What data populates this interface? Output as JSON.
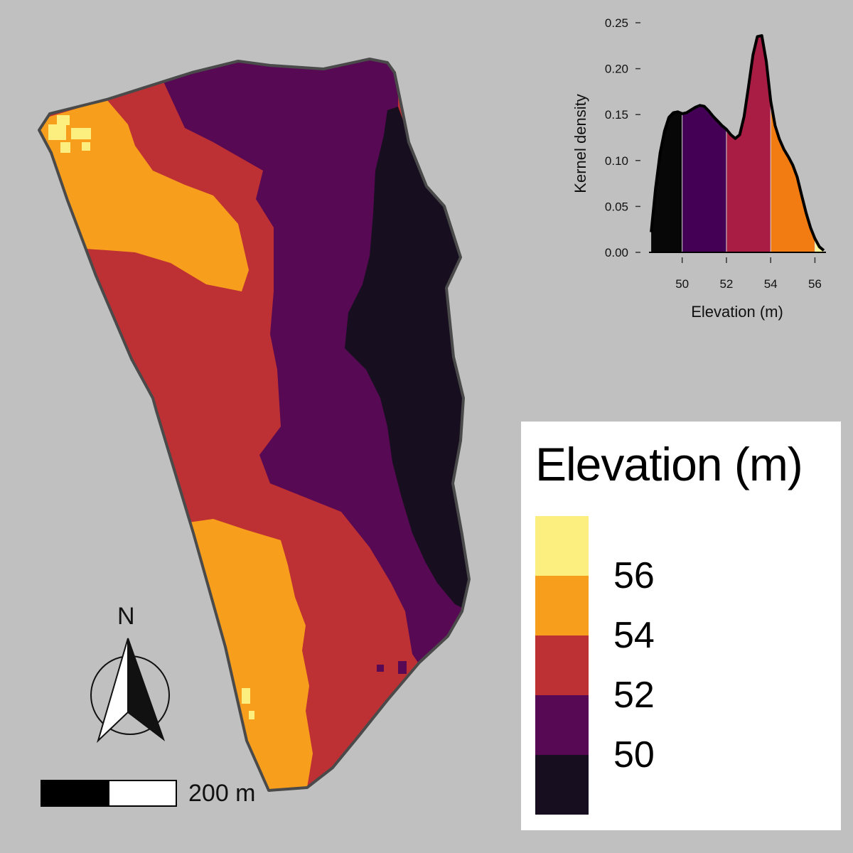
{
  "map": {
    "colors": {
      "band_lt50": "#170f1f",
      "band_50_52": "#570954",
      "band_52_54": "#bd3034",
      "band_54_56": "#f89e1d",
      "band_gt56": "#fcef80",
      "boundary": "#4a4a4a",
      "background": "#c0c0c0"
    }
  },
  "north_arrow": {
    "label": "N",
    "icon": "north-arrow-icon"
  },
  "scale_bar": {
    "label": "200 m"
  },
  "legend": {
    "title": "Elevation (m)",
    "labels": [
      "56",
      "54",
      "52",
      "50"
    ]
  },
  "chart_data": {
    "type": "area",
    "xlabel": "Elevation (m)",
    "ylabel": "Kernel density",
    "xlim": [
      48.5,
      56.5
    ],
    "ylim": [
      0,
      0.25
    ],
    "xticks": [
      "50",
      "52",
      "54",
      "56"
    ],
    "yticks": [
      "0.00",
      "0.05",
      "0.10",
      "0.15",
      "0.20",
      "0.25"
    ],
    "density_curve": {
      "x": [
        48.6,
        48.8,
        49.0,
        49.2,
        49.4,
        49.6,
        49.8,
        50.0,
        50.2,
        50.4,
        50.6,
        50.8,
        51.0,
        51.2,
        51.4,
        51.6,
        51.8,
        52.0,
        52.2,
        52.4,
        52.6,
        52.8,
        53.0,
        53.2,
        53.4,
        53.6,
        53.8,
        54.0,
        54.2,
        54.4,
        54.6,
        54.8,
        55.0,
        55.2,
        55.4,
        55.6,
        55.8,
        56.0,
        56.2,
        56.4
      ],
      "y": [
        0.022,
        0.07,
        0.108,
        0.132,
        0.147,
        0.152,
        0.153,
        0.151,
        0.152,
        0.155,
        0.158,
        0.16,
        0.159,
        0.154,
        0.148,
        0.143,
        0.138,
        0.134,
        0.128,
        0.124,
        0.128,
        0.148,
        0.181,
        0.215,
        0.235,
        0.236,
        0.208,
        0.165,
        0.138,
        0.123,
        0.112,
        0.104,
        0.095,
        0.082,
        0.062,
        0.043,
        0.027,
        0.015,
        0.006,
        0.002
      ]
    },
    "bands": [
      {
        "range": [
          48.6,
          50
        ],
        "color": "#070707"
      },
      {
        "range": [
          50,
          52
        ],
        "color": "#430055"
      },
      {
        "range": [
          52,
          54
        ],
        "color": "#a91d44"
      },
      {
        "range": [
          54,
          56
        ],
        "color": "#f37c12"
      },
      {
        "range": [
          56,
          56.4
        ],
        "color": "#fbf59c"
      }
    ]
  }
}
